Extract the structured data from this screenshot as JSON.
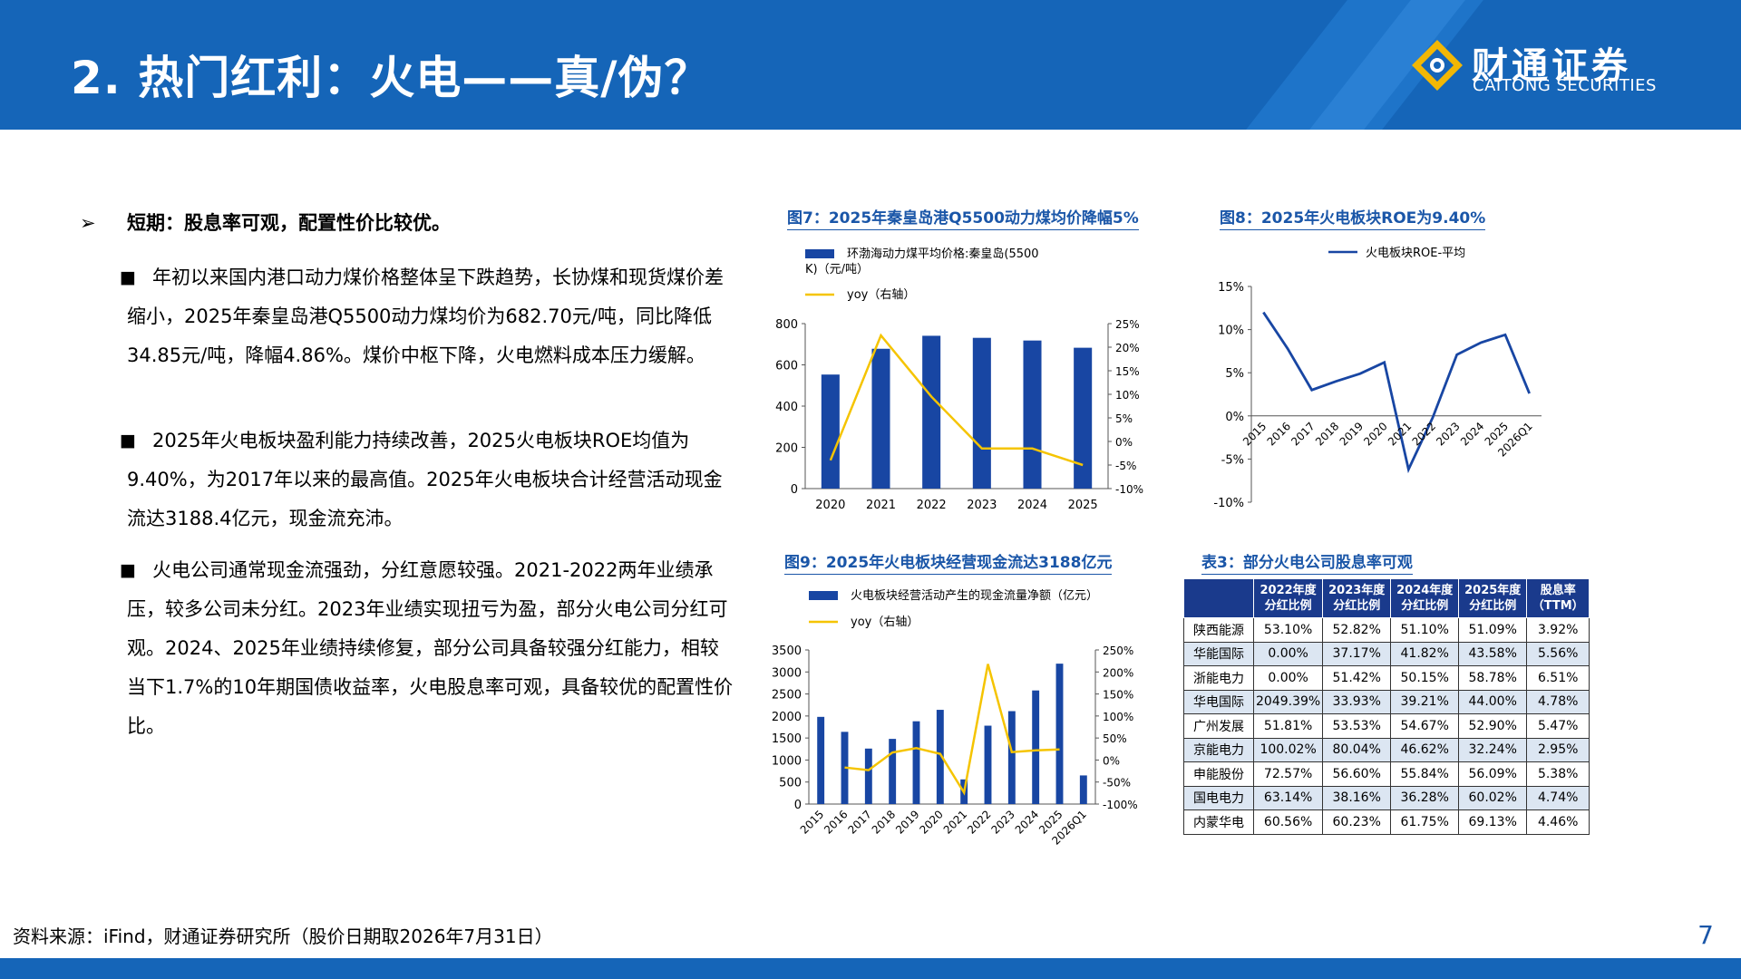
{
  "header": {
    "title": "2. 热门红利：火电——真/伪？",
    "logo_cn": "财通证券",
    "logo_en": "CAITONG SECURITIES"
  },
  "left": {
    "bullet": "短期：股息率可观，配置性价比较优。",
    "paragraphs": [
      "年初以来国内港口动力煤价格整体呈下跌趋势，长协煤和现货煤价差缩小，2025年秦皇岛港Q5500动力煤均价为682.70元/吨，同比降低34.85元/吨，降幅4.86%。煤价中枢下降，火电燃料成本压力缓解。",
      "2025年火电板块盈利能力持续改善，2025火电板块ROE均值为9.40%，为2017年以来的最高值。2025年火电板块合计经营活动现金流达3188.4亿元，现金流充沛。",
      "火电公司通常现金流强劲，分红意愿较强。2021-2022两年业绩承压，较多公司未分红。2023年业绩实现扭亏为盈，部分火电公司分红可观。2024、2025年业绩持续修复，部分公司具备较强分红能力，相较当下1.7%的10年期国债收益率，火电股息率可观，具备较优的配置性价比。"
    ]
  },
  "charts_text": {
    "fig7_title": "图7：2025年秦皇岛港Q5500动力煤均价降幅5%",
    "fig8_title": "图8：2025年火电板块ROE为9.40%",
    "fig9_title": "图9：2025年火电板块经营现金流达3188亿元",
    "table_title": "表3：部分火电公司股息率可观"
  },
  "chart_data": [
    {
      "type": "bar",
      "title": "图7：2025年秦皇岛港Q5500动力煤均价降幅5%",
      "legend_placement": "top",
      "categories": [
        "2020",
        "2021",
        "2022",
        "2023",
        "2024",
        "2025"
      ],
      "series": [
        {
          "name": "环渤海动力煤平均价格:秦皇岛(5500K)（元/吨）",
          "values": [
            553,
            678,
            741,
            731,
            718,
            683
          ],
          "axis": "left",
          "color": "#1846a3"
        },
        {
          "name": "yoy（右轴）",
          "values": [
            -4,
            22.5,
            9.5,
            -1.5,
            -1.5,
            -5
          ],
          "axis": "right",
          "type": "line",
          "color": "#f5c400"
        }
      ],
      "ylim": [
        0,
        800
      ],
      "yticks": [
        "0",
        "200",
        "400",
        "600",
        "800"
      ],
      "y2lim": [
        -10,
        25
      ],
      "y2ticks": [
        "-10%",
        "-5%",
        "0%",
        "5%",
        "10%",
        "15%",
        "20%",
        "25%"
      ]
    },
    {
      "type": "line",
      "title": "图8：2025年火电板块ROE为9.40%",
      "legend_placement": "top",
      "categories": [
        "2015",
        "2016",
        "2017",
        "2018",
        "2019",
        "2020",
        "2021",
        "2022",
        "2023",
        "2024",
        "2025",
        "2026Q1"
      ],
      "series": [
        {
          "name": "火电板块ROE-平均",
          "values": [
            12,
            7.8,
            3,
            4,
            4.9,
            6.2,
            -6.2,
            -0.2,
            7.1,
            8.5,
            9.4,
            2.6
          ],
          "color": "#1846a3"
        }
      ],
      "ylim": [
        -10,
        15
      ],
      "yticks": [
        "-10%",
        "-5%",
        "0%",
        "5%",
        "10%",
        "15%"
      ]
    },
    {
      "type": "bar",
      "title": "图9：2025年火电板块经营现金流达3188亿元",
      "legend_placement": "top",
      "categories": [
        "2015",
        "2016",
        "2017",
        "2018",
        "2019",
        "2020",
        "2021",
        "2022",
        "2023",
        "2024",
        "2025",
        "2026Q1"
      ],
      "series": [
        {
          "name": "火电板块经营活动产生的现金流量净额（亿元）",
          "values": [
            1980,
            1640,
            1260,
            1480,
            1880,
            2140,
            560,
            1780,
            2110,
            2580,
            3188.4,
            650
          ],
          "axis": "left",
          "color": "#1846a3"
        },
        {
          "name": "yoy（右轴）",
          "values": [
            null,
            -17,
            -23,
            17,
            27,
            14,
            -74,
            218,
            18,
            22,
            24,
            null
          ],
          "axis": "right",
          "type": "line",
          "color": "#f5c400"
        }
      ],
      "ylim": [
        0,
        3500
      ],
      "yticks": [
        "0",
        "500",
        "1000",
        "1500",
        "2000",
        "2500",
        "3000",
        "3500"
      ],
      "y2lim": [
        -100,
        250
      ],
      "y2ticks": [
        "-100%",
        "-50%",
        "0%",
        "50%",
        "100%",
        "150%",
        "200%",
        "250%"
      ]
    }
  ],
  "table": {
    "headers": [
      "",
      "2022年度分红比例",
      "2023年度分红比例",
      "2024年度分红比例",
      "2025年度分红比例",
      "股息率（TTM）"
    ],
    "rows": [
      [
        "陕西能源",
        "53.10%",
        "52.82%",
        "51.10%",
        "51.09%",
        "3.92%"
      ],
      [
        "华能国际",
        "0.00%",
        "37.17%",
        "41.82%",
        "43.58%",
        "5.56%"
      ],
      [
        "浙能电力",
        "0.00%",
        "51.42%",
        "50.15%",
        "58.78%",
        "6.51%"
      ],
      [
        "华电国际",
        "2049.39%",
        "33.93%",
        "39.21%",
        "44.00%",
        "4.78%"
      ],
      [
        "广州发展",
        "51.81%",
        "53.53%",
        "54.67%",
        "52.90%",
        "5.47%"
      ],
      [
        "京能电力",
        "100.02%",
        "80.04%",
        "46.62%",
        "32.24%",
        "2.95%"
      ],
      [
        "申能股份",
        "72.57%",
        "56.60%",
        "55.84%",
        "56.09%",
        "5.38%"
      ],
      [
        "国电电力",
        "63.14%",
        "38.16%",
        "36.28%",
        "60.02%",
        "4.74%"
      ],
      [
        "内蒙华电",
        "60.56%",
        "60.23%",
        "61.75%",
        "69.13%",
        "4.46%"
      ]
    ]
  },
  "footer": {
    "source": "资料来源：iFind，财通证券研究所（股价日期取2026年7月31日）",
    "page": "7"
  }
}
